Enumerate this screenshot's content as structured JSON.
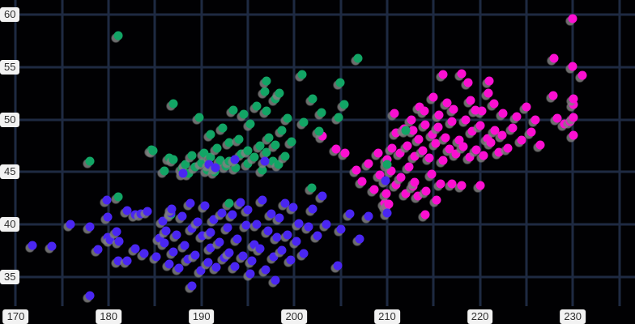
{
  "style": {
    "background": "#010103",
    "grid_color": "#1e2a42",
    "tick_label_bg": "#f2f2f2",
    "tick_label_color": "#2e2e2e",
    "point_shadow": "#808080"
  },
  "chart_data": {
    "type": "scatter",
    "title": "",
    "xlabel": "",
    "ylabel": "",
    "grid": true,
    "legend": "none",
    "x_axis": {
      "min": 168.3,
      "max": 236.7,
      "grid_step": 5,
      "grid_start": 170,
      "grid_end": 235,
      "tick_values": [
        170,
        180,
        190,
        200,
        210,
        220,
        230
      ],
      "tick_labels": [
        "170",
        "180",
        "190",
        "200",
        "210",
        "220",
        "230"
      ]
    },
    "y_axis": {
      "min": 30.5,
      "max": 61.4,
      "grid_step": 5,
      "grid_start": 35,
      "grid_end": 60,
      "tick_values": [
        35,
        40,
        45,
        50,
        55,
        60
      ],
      "tick_labels": [
        "35",
        "40",
        "45",
        "50",
        "55",
        "60"
      ]
    },
    "series": [
      {
        "name": "magenta-cluster",
        "color": "#fb0fd1",
        "points": [
          [
            203,
            48.4
          ],
          [
            204.5,
            47.2
          ],
          [
            205.5,
            46.8
          ],
          [
            206.7,
            45.2
          ],
          [
            207.3,
            44.1
          ],
          [
            208,
            45.8
          ],
          [
            208.6,
            43.3
          ],
          [
            209.2,
            44.7
          ],
          [
            209.7,
            42.0
          ],
          [
            209.9,
            42.9
          ],
          [
            209.9,
            41.7
          ],
          [
            210.2,
            41.9
          ],
          [
            210.4,
            45.1
          ],
          [
            211,
            43.8
          ],
          [
            211.5,
            44.5
          ],
          [
            212,
            42.9
          ],
          [
            212.4,
            45.5
          ],
          [
            212.8,
            43.6
          ],
          [
            213,
            44.0
          ],
          [
            213.3,
            42.7
          ],
          [
            214.1,
            40.9
          ],
          [
            214.2,
            43.2
          ],
          [
            214.8,
            44.8
          ],
          [
            215.3,
            42.3
          ],
          [
            215.8,
            43.9
          ],
          [
            217,
            43.9
          ],
          [
            218,
            43.7
          ],
          [
            220,
            43.7
          ],
          [
            210,
            46.2
          ],
          [
            210.5,
            47.3
          ],
          [
            211,
            48.7
          ],
          [
            211.4,
            46.8
          ],
          [
            211.8,
            49.1
          ],
          [
            212.2,
            47.5
          ],
          [
            212.6,
            50.0
          ],
          [
            212.8,
            49.0
          ],
          [
            213,
            46.5
          ],
          [
            213.4,
            48.1
          ],
          [
            213.8,
            47.0
          ],
          [
            214.1,
            49.5
          ],
          [
            214.5,
            46.3
          ],
          [
            214.9,
            48.6
          ],
          [
            215.2,
            47.7
          ],
          [
            215.6,
            50.4
          ],
          [
            216,
            46.1
          ],
          [
            216.3,
            48.3
          ],
          [
            216.7,
            47.2
          ],
          [
            217,
            49.8
          ],
          [
            217.4,
            46.7
          ],
          [
            217.8,
            48.0
          ],
          [
            218.2,
            47.4
          ],
          [
            218.5,
            50.0
          ],
          [
            218.9,
            46.4
          ],
          [
            219.2,
            48.9
          ],
          [
            219.6,
            47.1
          ],
          [
            220,
            49.4
          ],
          [
            220.4,
            46.6
          ],
          [
            220.8,
            48.2
          ],
          [
            221.2,
            47.8
          ],
          [
            221.6,
            49.0
          ],
          [
            222,
            46.9
          ],
          [
            222.4,
            48.5
          ],
          [
            223,
            47.3
          ],
          [
            209,
            46.8
          ],
          [
            210.8,
            50.6
          ],
          [
            213.5,
            51.2
          ],
          [
            215.5,
            49.3
          ],
          [
            217.2,
            51.0
          ],
          [
            219,
            51.8
          ],
          [
            220.2,
            50.8
          ],
          [
            223.5,
            49.2
          ],
          [
            224.5,
            48.0
          ],
          [
            225.5,
            48.8
          ],
          [
            226.5,
            47.6
          ],
          [
            214,
            50.8
          ],
          [
            215,
            52.1
          ],
          [
            216.5,
            51.6
          ],
          [
            218.7,
            53.5
          ],
          [
            220.9,
            52.5
          ],
          [
            225,
            51.2
          ],
          [
            227.9,
            52.3
          ],
          [
            219.5,
            50.9
          ],
          [
            221.5,
            51.5
          ],
          [
            222.5,
            50.6
          ],
          [
            224,
            50.3
          ],
          [
            226,
            50.0
          ],
          [
            218,
            54.4
          ],
          [
            221,
            53.7
          ],
          [
            216,
            54.3
          ],
          [
            228,
            55.8
          ],
          [
            230,
            55.1
          ],
          [
            231,
            54.2
          ],
          [
            230,
            59.6
          ],
          [
            229.1,
            49.6
          ],
          [
            229.7,
            49.8
          ],
          [
            230.1,
            50.2
          ],
          [
            230.1,
            51.4
          ],
          [
            230.1,
            52.0
          ],
          [
            230.1,
            48.5
          ],
          [
            228.3,
            50.1
          ]
        ]
      },
      {
        "name": "green-cluster",
        "color": "#12a565",
        "points": [
          [
            178,
            46.0
          ],
          [
            181,
            42.6
          ],
          [
            181,
            58.0
          ],
          [
            184.6,
            47.1
          ],
          [
            184.8,
            47.0
          ],
          [
            186,
            45.1
          ],
          [
            186.5,
            46.3
          ],
          [
            187,
            46.2
          ],
          [
            187,
            51.5
          ],
          [
            187.9,
            45.3
          ],
          [
            188.3,
            45.7
          ],
          [
            188.6,
            44.9
          ],
          [
            189,
            46.6
          ],
          [
            189.3,
            45.5
          ],
          [
            189.8,
            50.2
          ],
          [
            190,
            45.9
          ],
          [
            190.3,
            46.8
          ],
          [
            190.6,
            45.2
          ],
          [
            191,
            48.6
          ],
          [
            191,
            46.4
          ],
          [
            191.4,
            45.0
          ],
          [
            191.7,
            47.3
          ],
          [
            192,
            46.1
          ],
          [
            192.3,
            49.2
          ],
          [
            192.6,
            45.6
          ],
          [
            193,
            47.8
          ],
          [
            193,
            46.0
          ],
          [
            193.4,
            50.9
          ],
          [
            193.7,
            45.4
          ],
          [
            194,
            48.1
          ],
          [
            194.3,
            46.7
          ],
          [
            194.6,
            50.5
          ],
          [
            195,
            47.0
          ],
          [
            195,
            45.8
          ],
          [
            195.3,
            49.6
          ],
          [
            195.7,
            46.4
          ],
          [
            196,
            51.3
          ],
          [
            196.3,
            47.5
          ],
          [
            196.6,
            45.2
          ],
          [
            196.8,
            52.7
          ],
          [
            197,
            50.8
          ],
          [
            197,
            46.9
          ],
          [
            197,
            53.7
          ],
          [
            197.3,
            48.3
          ],
          [
            197.7,
            46.0
          ],
          [
            198,
            52.0
          ],
          [
            198,
            47.6
          ],
          [
            198.3,
            45.7
          ],
          [
            198.7,
            49.0
          ],
          [
            199,
            46.5
          ],
          [
            199.3,
            50.1
          ],
          [
            199.7,
            47.9
          ],
          [
            200.8,
            54.3
          ],
          [
            206.9,
            55.8
          ],
          [
            204.9,
            53.5
          ],
          [
            205.4,
            51.4
          ],
          [
            204.8,
            50.2
          ],
          [
            198.4,
            52.5
          ],
          [
            202,
            52.0
          ],
          [
            201,
            49.7
          ],
          [
            202.9,
            50.7
          ],
          [
            202.7,
            48.9
          ],
          [
            186.7,
            40.9
          ],
          [
            201.9,
            43.5
          ],
          [
            193,
            42.0
          ],
          [
            210,
            45.7
          ],
          [
            212,
            49.0
          ]
        ]
      },
      {
        "name": "blue-cluster",
        "color": "#4a26f2",
        "points": [
          [
            171.8,
            38.0
          ],
          [
            173.9,
            37.9
          ],
          [
            175.9,
            40.0
          ],
          [
            178,
            39.8
          ],
          [
            178,
            33.2
          ],
          [
            178.9,
            37.6
          ],
          [
            179.8,
            42.3
          ],
          [
            179.9,
            40.7
          ],
          [
            179.9,
            38.8
          ],
          [
            180.2,
            38.5
          ],
          [
            180.9,
            39.3
          ],
          [
            181,
            36.5
          ],
          [
            181.1,
            38.4
          ],
          [
            182,
            41.3
          ],
          [
            182,
            36.5
          ],
          [
            182.9,
            40.9
          ],
          [
            182.9,
            37.7
          ],
          [
            183.5,
            41.0
          ],
          [
            183.8,
            37.2
          ],
          [
            184.2,
            41.2
          ],
          [
            189,
            34.1
          ],
          [
            195.3,
            35.3
          ],
          [
            198,
            34.7
          ],
          [
            185.1,
            36.9
          ],
          [
            185.5,
            38.7
          ],
          [
            185.8,
            40.3
          ],
          [
            186,
            38.2
          ],
          [
            186.2,
            39.4
          ],
          [
            186.5,
            36.2
          ],
          [
            186.7,
            41.1
          ],
          [
            186.8,
            41.5
          ],
          [
            187,
            37.4
          ],
          [
            187.3,
            39.0
          ],
          [
            187.6,
            35.8
          ],
          [
            187.9,
            40.8
          ],
          [
            188.2,
            38.0
          ],
          [
            188.5,
            36.7
          ],
          [
            188.8,
            42.0
          ],
          [
            189,
            39.6
          ],
          [
            189.3,
            37.1
          ],
          [
            189.6,
            40.2
          ],
          [
            189.9,
            35.6
          ],
          [
            190.1,
            38.9
          ],
          [
            190.4,
            41.8
          ],
          [
            190.7,
            36.4
          ],
          [
            191,
            39.2
          ],
          [
            191,
            37.8
          ],
          [
            191.3,
            40.5
          ],
          [
            191.6,
            35.9
          ],
          [
            191.9,
            38.3
          ],
          [
            192.2,
            41.1
          ],
          [
            192.5,
            36.8
          ],
          [
            192.8,
            39.7
          ],
          [
            193,
            37.3
          ],
          [
            193.3,
            40.9
          ],
          [
            193.6,
            36.0
          ],
          [
            193.9,
            38.6
          ],
          [
            194.2,
            42.1
          ],
          [
            194.5,
            37.0
          ],
          [
            194.8,
            39.9
          ],
          [
            195,
            41.4
          ],
          [
            195.4,
            36.5
          ],
          [
            195.7,
            38.1
          ],
          [
            196,
            40.0
          ],
          [
            196.3,
            37.7
          ],
          [
            196.6,
            42.3
          ],
          [
            196.9,
            35.7
          ],
          [
            197.2,
            39.4
          ],
          [
            197.5,
            41.0
          ],
          [
            197.8,
            36.9
          ],
          [
            198.1,
            38.8
          ],
          [
            198.4,
            40.6
          ],
          [
            198.7,
            37.5
          ],
          [
            199,
            42.0
          ],
          [
            199.3,
            39.0
          ],
          [
            199.6,
            36.6
          ],
          [
            199.9,
            41.6
          ],
          [
            200.2,
            38.4
          ],
          [
            200.5,
            40.1
          ],
          [
            201,
            37.2
          ],
          [
            201.5,
            39.8
          ],
          [
            202,
            41.5
          ],
          [
            202.5,
            38.9
          ],
          [
            203,
            42.7
          ],
          [
            203.5,
            40.0
          ],
          [
            204.7,
            36.1
          ],
          [
            205,
            39.5
          ],
          [
            206,
            41.0
          ],
          [
            207,
            38.6
          ],
          [
            208,
            40.8
          ],
          [
            209.8,
            44.2
          ],
          [
            210,
            41.1
          ],
          [
            190.8,
            45.7
          ],
          [
            193.6,
            46.2
          ],
          [
            196.8,
            46.0
          ],
          [
            191.5,
            45.4
          ],
          [
            188,
            44.9
          ]
        ]
      }
    ]
  }
}
